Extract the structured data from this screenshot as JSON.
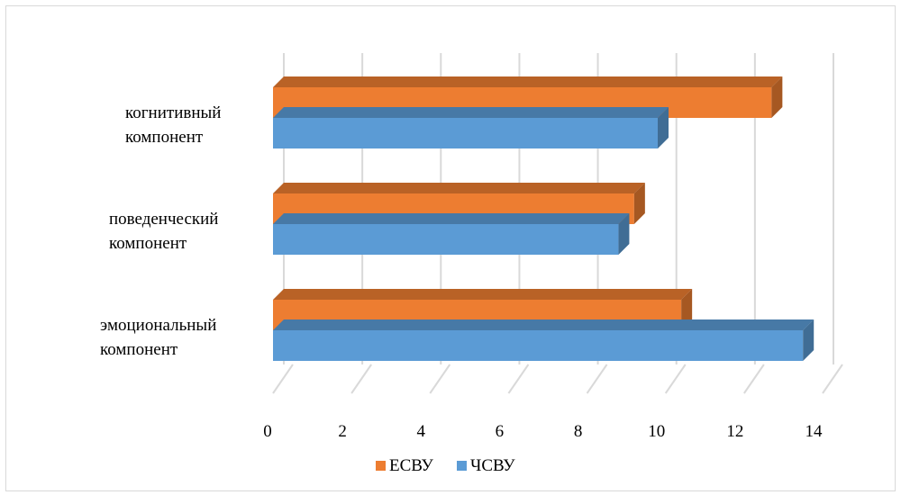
{
  "chart_data": {
    "type": "bar",
    "orientation": "horizontal",
    "style": "3d",
    "categories": [
      [
        "когнитивный",
        "компонент"
      ],
      [
        "поведенческий",
        "компонент"
      ],
      [
        "эмоциональный",
        "компонент"
      ]
    ],
    "series": [
      {
        "name": "ЕСВУ",
        "color": "#ed7d31",
        "values": [
          12.7,
          9.2,
          10.4
        ]
      },
      {
        "name": "ЧСВУ",
        "color": "#5b9bd5",
        "values": [
          9.8,
          8.8,
          13.5
        ]
      }
    ],
    "xlim": [
      0,
      14
    ],
    "xticks": [
      0,
      2,
      4,
      6,
      8,
      10,
      12,
      14
    ],
    "grid": true,
    "legend_position": "bottom",
    "title": "",
    "xlabel": "",
    "ylabel": ""
  }
}
